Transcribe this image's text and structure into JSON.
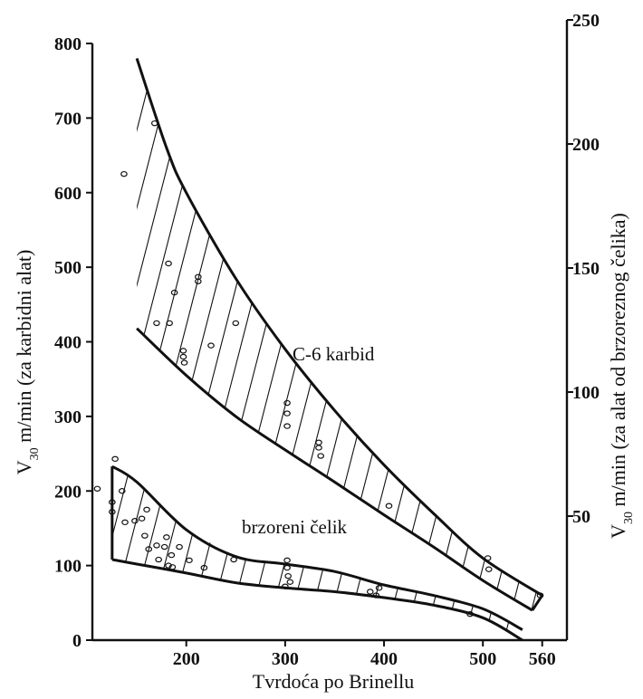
{
  "chart_data": {
    "type": "area",
    "xlabel": "Tvrdoća po Brinellu",
    "ylabel_left": {
      "main": "V",
      "sub": "30",
      "rest": " m/min (za karbidni alat)"
    },
    "ylabel_right": {
      "main": "V",
      "sub": "30",
      "rest": " m/min (za alat od brzoreznog čelika)"
    },
    "x_ticks": [
      "200",
      "300",
      "400",
      "500",
      "560"
    ],
    "x_tick_values": [
      200,
      300,
      400,
      500,
      560
    ],
    "y_left_ticks": [
      "0",
      "100",
      "200",
      "300",
      "400",
      "500",
      "600",
      "700",
      "800"
    ],
    "y_left_tick_values": [
      0,
      100,
      200,
      300,
      400,
      500,
      600,
      700,
      800
    ],
    "y_right_ticks": [
      "50",
      "100",
      "150",
      "200",
      "250"
    ],
    "y_right_tick_values": [
      50,
      100,
      150,
      200,
      250
    ],
    "xlim": [
      105,
      585
    ],
    "ylim_left": [
      0,
      800
    ],
    "ylim_right": [
      0,
      250
    ],
    "grid": false,
    "annotations": [
      "C-6 karbid",
      "brzoreni čelik"
    ],
    "series": [
      {
        "name": "C-6 karbid",
        "upper_x": [
          150,
          180,
          200,
          250,
          300,
          350,
          400,
          450,
          500,
          560
        ],
        "upper_y": [
          780,
          660,
          600,
          485,
          390,
          308,
          235,
          170,
          110,
          60
        ],
        "lower_x": [
          150,
          200,
          250,
          300,
          350,
          400,
          450,
          500,
          550
        ],
        "lower_y": [
          418,
          355,
          300,
          255,
          212,
          168,
          125,
          80,
          40
        ],
        "points": [
          [
            137,
            625
          ],
          [
            168,
            693
          ],
          [
            182,
            505
          ],
          [
            188,
            466
          ],
          [
            170,
            425
          ],
          [
            183,
            425
          ],
          [
            212,
            487
          ],
          [
            212,
            481
          ],
          [
            197,
            388
          ],
          [
            197,
            380
          ],
          [
            198,
            372
          ],
          [
            225,
            395
          ],
          [
            250,
            425
          ],
          [
            302,
            318
          ],
          [
            302,
            304
          ],
          [
            302,
            287
          ],
          [
            334,
            265
          ],
          [
            334,
            258
          ],
          [
            336,
            247
          ],
          [
            405,
            180
          ],
          [
            505,
            110
          ],
          [
            506,
            95
          ],
          [
            558,
            60
          ]
        ]
      },
      {
        "name": "brzoreni čelik",
        "upper_x": [
          125,
          150,
          200,
          250,
          300,
          350,
          400,
          450,
          500,
          540
        ],
        "upper_y": [
          233,
          212,
          148,
          112,
          102,
          92,
          74,
          60,
          42,
          14
        ],
        "lower_x": [
          125,
          150,
          200,
          250,
          300,
          350,
          400,
          450,
          500,
          540
        ],
        "lower_y": [
          108,
          102,
          90,
          77,
          70,
          65,
          57,
          47,
          30,
          0
        ],
        "points": [
          [
            110,
            203
          ],
          [
            128,
            243
          ],
          [
            125,
            185
          ],
          [
            125,
            172
          ],
          [
            135,
            200
          ],
          [
            138,
            158
          ],
          [
            148,
            160
          ],
          [
            155,
            163
          ],
          [
            158,
            140
          ],
          [
            160,
            175
          ],
          [
            162,
            122
          ],
          [
            170,
            127
          ],
          [
            172,
            108
          ],
          [
            178,
            125
          ],
          [
            182,
            100
          ],
          [
            180,
            138
          ],
          [
            185,
            114
          ],
          [
            186,
            98
          ],
          [
            193,
            125
          ],
          [
            203,
            107
          ],
          [
            218,
            97
          ],
          [
            248,
            108
          ],
          [
            302,
            107
          ],
          [
            302,
            97
          ],
          [
            303,
            86
          ],
          [
            305,
            78
          ],
          [
            300,
            72
          ],
          [
            386,
            65
          ],
          [
            392,
            60
          ],
          [
            395,
            70
          ],
          [
            487,
            35
          ]
        ]
      }
    ]
  }
}
